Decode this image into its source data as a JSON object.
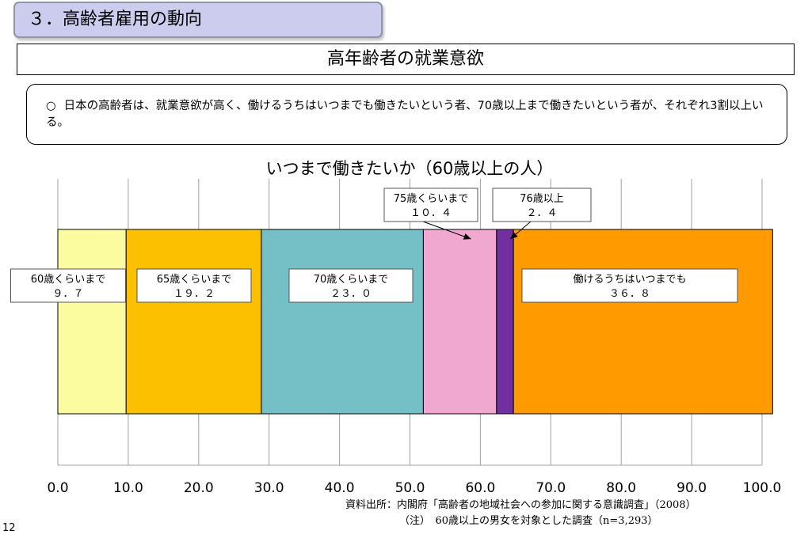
{
  "section_heading": "３．高齢者雇用の動向",
  "slide_title": "高年齢者の就業意欲",
  "summary": {
    "bullet": "○",
    "text": "日本の高齢者は、就業意欲が高く、働けるうちはいつまでも働きたいという者、70歳以上まで働きたいという者が、それぞれ3割以上いる。"
  },
  "chart_data": {
    "type": "bar",
    "orientation": "horizontal",
    "stacked": true,
    "title": "いつまで働きたいか（60歳以上の人）",
    "xlim": [
      0,
      100
    ],
    "ticks": [
      "0.0",
      "10.0",
      "20.0",
      "30.0",
      "40.0",
      "50.0",
      "60.0",
      "70.0",
      "80.0",
      "90.0",
      "100.0"
    ],
    "grid": true,
    "series": [
      {
        "name": "60歳くらいまで",
        "value": 9.7,
        "value_label": "９．７",
        "color": "#fbfba0"
      },
      {
        "name": "65歳くらいまで",
        "value": 19.2,
        "value_label": "１９．２",
        "color": "#fdc000"
      },
      {
        "name": "70歳くらいまで",
        "value": 23.0,
        "value_label": "２３．０",
        "color": "#75bfc6"
      },
      {
        "name": "75歳くらいまで",
        "value": 10.4,
        "value_label": "１０．４",
        "color": "#f0a8d0"
      },
      {
        "name": "76歳以上",
        "value": 2.4,
        "value_label": "２．４",
        "color": "#7030a0"
      },
      {
        "name": "働けるうちはいつまでも",
        "value": 36.8,
        "value_label": "３６．８",
        "color": "#ff9a00"
      }
    ]
  },
  "source_note": "資料出所：内閣府「高齢者の地域社会への参加に関する意識調査」（2008）",
  "population_note": "（注）　60歳以上の男女を対象とした調査（n=3,293）",
  "page_number": "12"
}
